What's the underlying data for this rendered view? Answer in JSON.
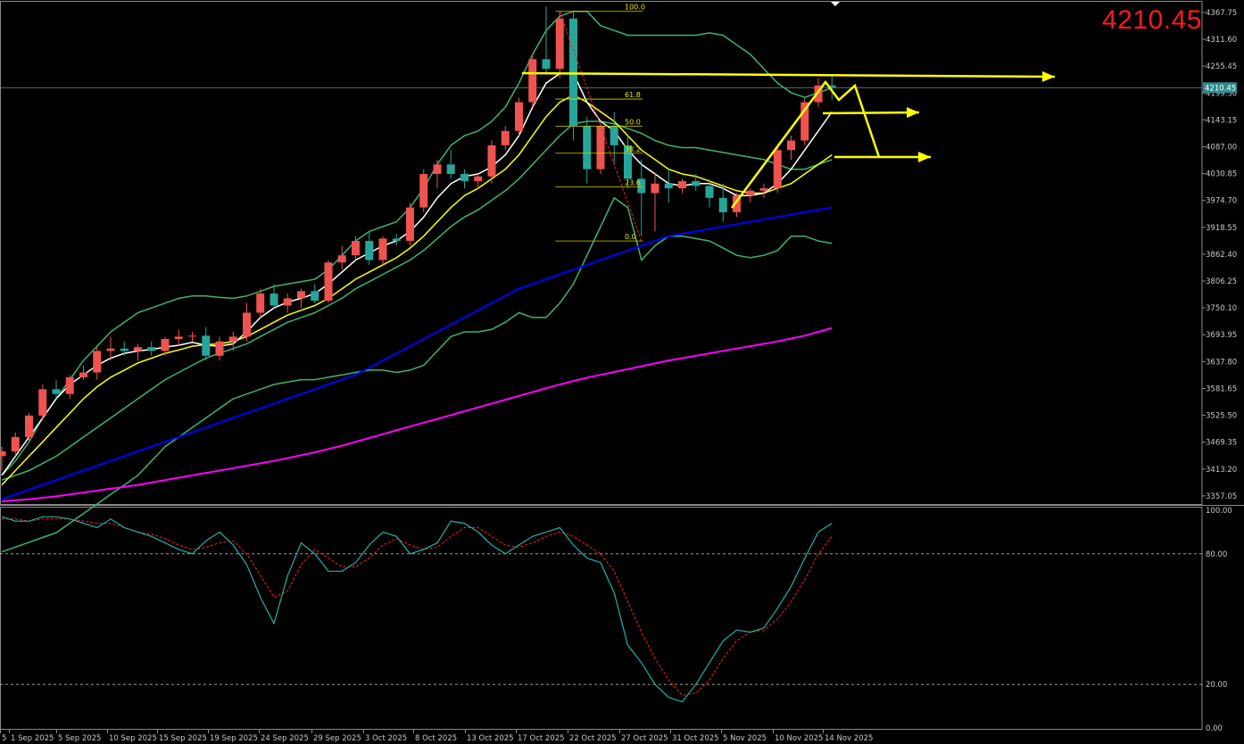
{
  "price_display": {
    "value": "4210.45",
    "color": "#ff1a1a"
  },
  "current_price_tag": "4210.45",
  "colors": {
    "background": "#000000",
    "bull_candle": "#ef5350",
    "bear_candle": "#26a69a",
    "bollinger": "#3cb371",
    "ma_fast": "#ffffff",
    "ma_mid": "#ffff00",
    "ma_slow": "#0000ff",
    "ma_long": "#ff00ff",
    "annotation": "#ffff00",
    "stoch_main": "#20b2aa",
    "stoch_signal": "#ff2020"
  },
  "icons": [
    "down-triangle-marker-icon",
    "arrow-right-icon"
  ],
  "price_axis": {
    "labels": [
      "4367.75",
      "4311.60",
      "4255.45",
      "4199.30",
      "4143.15",
      "4087.00",
      "4030.85",
      "3974.70",
      "3918.55",
      "3862.40",
      "3806.25",
      "3750.10",
      "3693.95",
      "3637.80",
      "3581.65",
      "3525.50",
      "3469.35",
      "3413.20",
      "3357.05"
    ]
  },
  "stoch_axis": {
    "labels": [
      "100.00",
      "80.00",
      "20.00",
      "0.00"
    ]
  },
  "time_axis": {
    "labels": [
      "5",
      "1 Sep 2025",
      "5 Sep 2025",
      "10 Sep 2025",
      "15 Sep 2025",
      "19 Sep 2025",
      "24 Sep 2025",
      "29 Sep 2025",
      "3 Oct 2025",
      "8 Oct 2025",
      "13 Oct 2025",
      "17 Oct 2025",
      "22 Oct 2025",
      "27 Oct 2025",
      "31 Oct 2025",
      "5 Nov 2025",
      "10 Nov 2025",
      "14 Nov 2025"
    ]
  },
  "fibonacci": {
    "levels": [
      "100.0",
      "61.8",
      "50.0",
      "38.2",
      "23.6",
      "0.0"
    ]
  },
  "chart_data": {
    "type": "candlestick",
    "y_range": [
      3340,
      4390
    ],
    "candles": [
      {
        "o": 3440,
        "h": 3460,
        "l": 3410,
        "c": 3450
      },
      {
        "o": 3450,
        "h": 3490,
        "l": 3440,
        "c": 3480
      },
      {
        "o": 3480,
        "h": 3530,
        "l": 3470,
        "c": 3525
      },
      {
        "o": 3525,
        "h": 3590,
        "l": 3515,
        "c": 3580
      },
      {
        "o": 3580,
        "h": 3600,
        "l": 3560,
        "c": 3570
      },
      {
        "o": 3570,
        "h": 3610,
        "l": 3560,
        "c": 3605
      },
      {
        "o": 3605,
        "h": 3630,
        "l": 3600,
        "c": 3615
      },
      {
        "o": 3615,
        "h": 3670,
        "l": 3600,
        "c": 3660
      },
      {
        "o": 3660,
        "h": 3690,
        "l": 3640,
        "c": 3665
      },
      {
        "o": 3665,
        "h": 3680,
        "l": 3650,
        "c": 3660
      },
      {
        "o": 3660,
        "h": 3675,
        "l": 3640,
        "c": 3668
      },
      {
        "o": 3668,
        "h": 3680,
        "l": 3650,
        "c": 3660
      },
      {
        "o": 3660,
        "h": 3690,
        "l": 3650,
        "c": 3685
      },
      {
        "o": 3685,
        "h": 3705,
        "l": 3670,
        "c": 3690
      },
      {
        "o": 3690,
        "h": 3700,
        "l": 3680,
        "c": 3692
      },
      {
        "o": 3692,
        "h": 3710,
        "l": 3640,
        "c": 3650
      },
      {
        "o": 3650,
        "h": 3690,
        "l": 3640,
        "c": 3680
      },
      {
        "o": 3680,
        "h": 3700,
        "l": 3660,
        "c": 3690
      },
      {
        "o": 3690,
        "h": 3760,
        "l": 3680,
        "c": 3740
      },
      {
        "o": 3740,
        "h": 3790,
        "l": 3730,
        "c": 3780
      },
      {
        "o": 3780,
        "h": 3800,
        "l": 3750,
        "c": 3755
      },
      {
        "o": 3755,
        "h": 3780,
        "l": 3740,
        "c": 3770
      },
      {
        "o": 3770,
        "h": 3790,
        "l": 3750,
        "c": 3785
      },
      {
        "o": 3785,
        "h": 3800,
        "l": 3760,
        "c": 3765
      },
      {
        "o": 3765,
        "h": 3850,
        "l": 3760,
        "c": 3845
      },
      {
        "o": 3845,
        "h": 3880,
        "l": 3830,
        "c": 3860
      },
      {
        "o": 3860,
        "h": 3900,
        "l": 3850,
        "c": 3890
      },
      {
        "o": 3890,
        "h": 3910,
        "l": 3840,
        "c": 3850
      },
      {
        "o": 3850,
        "h": 3900,
        "l": 3840,
        "c": 3895
      },
      {
        "o": 3895,
        "h": 3905,
        "l": 3880,
        "c": 3890
      },
      {
        "o": 3890,
        "h": 3970,
        "l": 3880,
        "c": 3960
      },
      {
        "o": 3960,
        "h": 4040,
        "l": 3950,
        "c": 4030
      },
      {
        "o": 4030,
        "h": 4060,
        "l": 4000,
        "c": 4050
      },
      {
        "o": 4050,
        "h": 4080,
        "l": 4020,
        "c": 4030
      },
      {
        "o": 4030,
        "h": 4040,
        "l": 4000,
        "c": 4015
      },
      {
        "o": 4015,
        "h": 4030,
        "l": 4000,
        "c": 4025
      },
      {
        "o": 4025,
        "h": 4100,
        "l": 4010,
        "c": 4090
      },
      {
        "o": 4090,
        "h": 4130,
        "l": 4080,
        "c": 4120
      },
      {
        "o": 4120,
        "h": 4190,
        "l": 4110,
        "c": 4180
      },
      {
        "o": 4180,
        "h": 4280,
        "l": 4170,
        "c": 4270
      },
      {
        "o": 4270,
        "h": 4380,
        "l": 4240,
        "c": 4250
      },
      {
        "o": 4250,
        "h": 4370,
        "l": 4230,
        "c": 4355
      },
      {
        "o": 4355,
        "h": 4370,
        "l": 4100,
        "c": 4130
      },
      {
        "o": 4130,
        "h": 4150,
        "l": 4010,
        "c": 4040
      },
      {
        "o": 4040,
        "h": 4140,
        "l": 4030,
        "c": 4130
      },
      {
        "o": 4130,
        "h": 4160,
        "l": 4050,
        "c": 4090
      },
      {
        "o": 4090,
        "h": 4110,
        "l": 4000,
        "c": 4020
      },
      {
        "o": 4020,
        "h": 4060,
        "l": 3900,
        "c": 3990
      },
      {
        "o": 3990,
        "h": 4030,
        "l": 3910,
        "c": 4010
      },
      {
        "o": 4010,
        "h": 4040,
        "l": 3970,
        "c": 4000
      },
      {
        "o": 4000,
        "h": 4020,
        "l": 3990,
        "c": 4015
      },
      {
        "o": 4015,
        "h": 4030,
        "l": 3995,
        "c": 4005
      },
      {
        "o": 4005,
        "h": 4020,
        "l": 3960,
        "c": 3980
      },
      {
        "o": 3980,
        "h": 4010,
        "l": 3930,
        "c": 3950
      },
      {
        "o": 3950,
        "h": 3990,
        "l": 3940,
        "c": 3985
      },
      {
        "o": 3985,
        "h": 4000,
        "l": 3970,
        "c": 3995
      },
      {
        "o": 3995,
        "h": 4010,
        "l": 3980,
        "c": 4000
      },
      {
        "o": 4000,
        "h": 4090,
        "l": 3990,
        "c": 4080
      },
      {
        "o": 4080,
        "h": 4110,
        "l": 4060,
        "c": 4100
      },
      {
        "o": 4100,
        "h": 4190,
        "l": 4090,
        "c": 4180
      },
      {
        "o": 4180,
        "h": 4230,
        "l": 4170,
        "c": 4215
      },
      {
        "o": 4215,
        "h": 4235,
        "l": 4185,
        "c": 4210
      }
    ],
    "ma_fast": [
      3400,
      3440,
      3480,
      3520,
      3560,
      3590,
      3610,
      3630,
      3645,
      3655,
      3660,
      3663,
      3668,
      3672,
      3678,
      3672,
      3670,
      3675,
      3700,
      3730,
      3750,
      3762,
      3770,
      3780,
      3800,
      3825,
      3850,
      3865,
      3880,
      3890,
      3910,
      3940,
      3980,
      4010,
      4025,
      4030,
      4045,
      4070,
      4110,
      4170,
      4220,
      4240,
      4240,
      4180,
      4140,
      4120,
      4080,
      4050,
      4030,
      4010,
      4005,
      4010,
      4010,
      4000,
      3985,
      3985,
      3990,
      4010,
      4040,
      4080,
      4120,
      4160
    ],
    "ma_mid": [
      3380,
      3410,
      3440,
      3470,
      3500,
      3530,
      3560,
      3585,
      3605,
      3620,
      3635,
      3645,
      3655,
      3662,
      3670,
      3673,
      3675,
      3680,
      3690,
      3705,
      3720,
      3735,
      3745,
      3755,
      3770,
      3790,
      3810,
      3825,
      3840,
      3855,
      3875,
      3900,
      3930,
      3960,
      3985,
      4000,
      4020,
      4040,
      4070,
      4110,
      4150,
      4180,
      4195,
      4180,
      4160,
      4140,
      4110,
      4080,
      4060,
      4040,
      4030,
      4025,
      4015,
      4005,
      3995,
      3990,
      3990,
      4000,
      4010,
      4030,
      4050,
      4070
    ],
    "bb_upper": [
      3400,
      3430,
      3470,
      3520,
      3560,
      3600,
      3640,
      3670,
      3700,
      3720,
      3740,
      3750,
      3760,
      3770,
      3775,
      3775,
      3772,
      3770,
      3775,
      3785,
      3795,
      3800,
      3805,
      3810,
      3830,
      3860,
      3890,
      3910,
      3920,
      3930,
      3960,
      4000,
      4050,
      4090,
      4110,
      4120,
      4140,
      4170,
      4220,
      4280,
      4330,
      4360,
      4370,
      4370,
      4340,
      4330,
      4320,
      4320,
      4320,
      4320,
      4320,
      4320,
      4325,
      4320,
      4300,
      4280,
      4250,
      4220,
      4200,
      4190,
      4200,
      4210
    ],
    "bb_mid": [
      3390,
      3400,
      3410,
      3425,
      3440,
      3460,
      3480,
      3500,
      3520,
      3540,
      3560,
      3580,
      3600,
      3615,
      3630,
      3645,
      3655,
      3665,
      3675,
      3690,
      3705,
      3720,
      3730,
      3740,
      3755,
      3770,
      3790,
      3805,
      3820,
      3835,
      3850,
      3870,
      3895,
      3920,
      3940,
      3955,
      3975,
      3995,
      4020,
      4050,
      4080,
      4110,
      4135,
      4140,
      4140,
      4135,
      4125,
      4115,
      4100,
      4090,
      4085,
      4085,
      4080,
      4075,
      4070,
      4065,
      4060,
      4050,
      4040,
      4040,
      4050,
      4060
    ],
    "bb_lower": [
      3240,
      3250,
      3260,
      3270,
      3280,
      3300,
      3320,
      3340,
      3360,
      3380,
      3400,
      3430,
      3460,
      3480,
      3500,
      3520,
      3540,
      3560,
      3570,
      3580,
      3590,
      3595,
      3600,
      3600,
      3605,
      3610,
      3615,
      3620,
      3620,
      3615,
      3620,
      3630,
      3660,
      3690,
      3700,
      3700,
      3705,
      3720,
      3740,
      3730,
      3730,
      3760,
      3800,
      3860,
      3920,
      3980,
      3960,
      3850,
      3880,
      3900,
      3900,
      3895,
      3890,
      3875,
      3860,
      3855,
      3860,
      3870,
      3900,
      3900,
      3890,
      3885
    ],
    "ma_slow": [
      3350,
      3360,
      3370,
      3380,
      3390,
      3400,
      3410,
      3420,
      3430,
      3440,
      3450,
      3460,
      3470,
      3480,
      3490,
      3500,
      3510,
      3520,
      3530,
      3540,
      3550,
      3560,
      3570,
      3580,
      3590,
      3600,
      3610,
      3625,
      3640,
      3655,
      3670,
      3685,
      3700,
      3715,
      3730,
      3745,
      3760,
      3775,
      3790,
      3800,
      3810,
      3820,
      3830,
      3840,
      3850,
      3860,
      3870,
      3880,
      3890,
      3900,
      3905,
      3910,
      3915,
      3920,
      3925,
      3930,
      3935,
      3940,
      3945,
      3950,
      3955,
      3960
    ],
    "ma_long": [
      3345,
      3348,
      3350,
      3353,
      3356,
      3360,
      3364,
      3368,
      3372,
      3376,
      3380,
      3385,
      3390,
      3395,
      3400,
      3405,
      3410,
      3415,
      3420,
      3425,
      3430,
      3436,
      3442,
      3448,
      3455,
      3462,
      3470,
      3478,
      3486,
      3494,
      3502,
      3510,
      3518,
      3526,
      3534,
      3542,
      3550,
      3558,
      3566,
      3574,
      3582,
      3590,
      3597,
      3604,
      3610,
      3616,
      3622,
      3628,
      3634,
      3640,
      3645,
      3650,
      3655,
      3660,
      3665,
      3670,
      3675,
      3680,
      3686,
      3692,
      3700,
      3708
    ],
    "stoch_range": [
      0,
      100
    ],
    "stoch_k": [
      97,
      95,
      95,
      97,
      97,
      96,
      94,
      92,
      96,
      92,
      90,
      88,
      85,
      82,
      80,
      86,
      90,
      84,
      75,
      60,
      48,
      70,
      85,
      80,
      72,
      72,
      76,
      84,
      90,
      88,
      80,
      82,
      85,
      95,
      94,
      90,
      84,
      80,
      84,
      88,
      90,
      92,
      84,
      78,
      76,
      62,
      38,
      30,
      20,
      14,
      12,
      20,
      30,
      40,
      45,
      44,
      46,
      55,
      65,
      78,
      90,
      94
    ],
    "stoch_d": [
      96,
      96,
      95,
      96,
      96,
      96,
      95,
      94,
      94,
      92,
      90,
      89,
      87,
      84,
      82,
      83,
      85,
      86,
      80,
      70,
      60,
      63,
      75,
      82,
      78,
      74,
      74,
      78,
      84,
      87,
      84,
      82,
      83,
      88,
      92,
      92,
      88,
      84,
      83,
      85,
      88,
      90,
      88,
      84,
      80,
      72,
      58,
      44,
      32,
      22,
      15,
      16,
      22,
      32,
      40,
      44,
      45,
      50,
      58,
      68,
      80,
      88
    ]
  }
}
